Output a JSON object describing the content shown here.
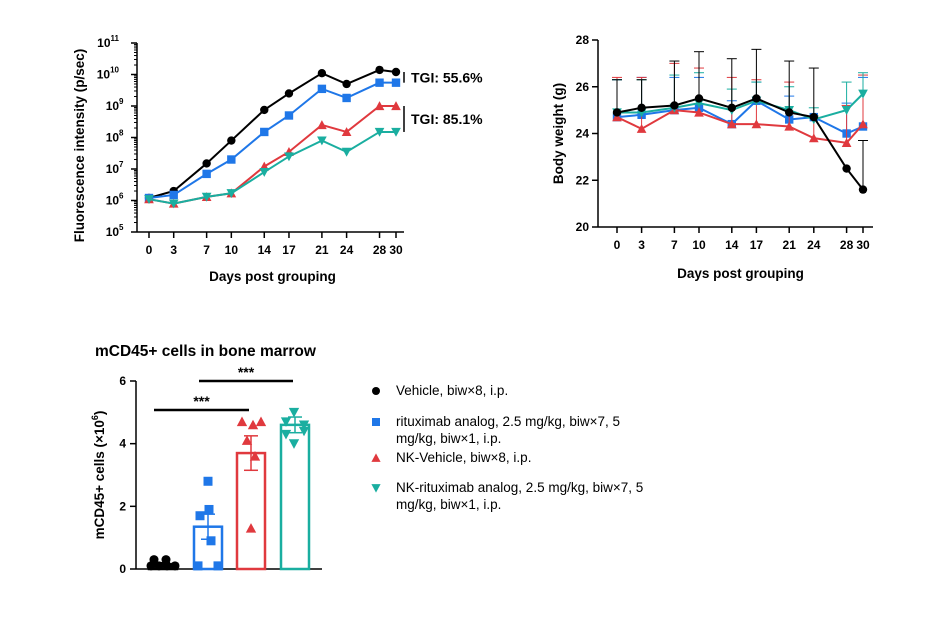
{
  "colors": {
    "vehicle": "#000000",
    "rituximab": "#1f77e8",
    "nk_vehicle": "#e0393e",
    "nk_rituximab": "#1aaea0"
  },
  "legend": [
    {
      "key": "vehicle",
      "marker": "circle",
      "lines": [
        "Vehicle, biw×8, i.p."
      ]
    },
    {
      "key": "rituximab",
      "marker": "square",
      "lines": [
        "rituximab analog, 2.5 mg/kg, biw×7, 5",
        "mg/kg, biw×1, i.p."
      ]
    },
    {
      "key": "nk_vehicle",
      "marker": "triangle-up",
      "lines": [
        "NK-Vehicle, biw×8, i.p."
      ]
    },
    {
      "key": "nk_rituximab",
      "marker": "triangle-down",
      "lines": [
        "NK-rituximab analog, 2.5 mg/kg, biw×7, 5",
        "mg/kg, biw×1, i.p."
      ]
    }
  ],
  "chart_data": [
    {
      "id": "fluorescence",
      "type": "line",
      "scale_y": "log",
      "xlabel": "Days post grouping",
      "ylabel": "Fluorescence intensity (p/sec)",
      "x": [
        0,
        3,
        7,
        10,
        14,
        17,
        21,
        24,
        28,
        30
      ],
      "x_tick_labels": [
        "0",
        "3",
        "7",
        "10",
        "14",
        "17",
        "21",
        "24",
        "28",
        "30"
      ],
      "ylim": [
        100000,
        100000000000
      ],
      "y_tick_labels": [
        {
          "value": 100000,
          "base": "10",
          "exp": "5"
        },
        {
          "value": 1000000,
          "base": "10",
          "exp": "6"
        },
        {
          "value": 10000000,
          "base": "10",
          "exp": "7"
        },
        {
          "value": 100000000,
          "base": "10",
          "exp": "8"
        },
        {
          "value": 1000000000,
          "base": "10",
          "exp": "9"
        },
        {
          "value": 10000000000,
          "base": "10",
          "exp": "10"
        },
        {
          "value": 100000000000,
          "base": "10",
          "exp": "11"
        }
      ],
      "series": [
        {
          "key": "vehicle",
          "marker": "circle",
          "values": [
            1200000,
            2000000,
            15000000,
            80000000,
            750000000,
            2500000000,
            11000000000,
            5000000000,
            14000000000,
            12000000000
          ]
        },
        {
          "key": "rituximab",
          "marker": "square",
          "values": [
            1200000,
            1500000,
            7000000,
            20000000,
            150000000,
            500000000,
            3500000000,
            1800000000,
            5500000000,
            5500000000
          ]
        },
        {
          "key": "nk_vehicle",
          "marker": "triangle-up",
          "values": [
            1100000,
            800000,
            1300000,
            1700000,
            12000000,
            35000000,
            250000000,
            150000000,
            1000000000,
            1000000000
          ]
        },
        {
          "key": "nk_rituximab",
          "marker": "triangle-down",
          "values": [
            1100000,
            800000,
            1300000,
            1700000,
            8000000,
            25000000,
            80000000,
            35000000,
            150000000,
            150000000
          ]
        }
      ],
      "annotations": [
        {
          "text": "TGI: 55.6%",
          "from": 12000000000,
          "to": 5500000000
        },
        {
          "text": "TGI: 85.1%",
          "from": 1000000000,
          "to": 150000000
        }
      ]
    },
    {
      "id": "body_weight",
      "type": "line",
      "xlabel": "Days post grouping",
      "ylabel": "Body weight (g)",
      "x": [
        0,
        3,
        7,
        10,
        14,
        17,
        21,
        24,
        28,
        30
      ],
      "x_tick_labels": [
        "0",
        "3",
        "7",
        "10",
        "14",
        "17",
        "21",
        "24",
        "28",
        "30"
      ],
      "ylim": [
        20,
        28
      ],
      "y_ticks": [
        20,
        22,
        24,
        26,
        28
      ],
      "y_tick_labels": [
        "20",
        "22",
        "24",
        "26",
        "28"
      ],
      "series": [
        {
          "key": "vehicle",
          "marker": "circle",
          "values": [
            24.9,
            25.1,
            25.2,
            25.5,
            25.1,
            25.5,
            24.9,
            24.7,
            22.5,
            21.6
          ],
          "error_plus": [
            1.4,
            1.2,
            1.9,
            2.0,
            2.1,
            2.1,
            2.2,
            2.1,
            0,
            2.1
          ]
        },
        {
          "key": "rituximab",
          "marker": "square",
          "values": [
            24.7,
            24.8,
            25.0,
            25.1,
            24.4,
            25.4,
            24.6,
            24.7,
            24.0,
            24.3
          ],
          "error_plus": [
            1.6,
            1.6,
            1.4,
            1.3,
            1.0,
            0.8,
            1.0,
            0.0,
            1.3,
            2.1
          ]
        },
        {
          "key": "nk_vehicle",
          "marker": "triangle-up",
          "values": [
            24.7,
            24.2,
            25.0,
            24.9,
            24.4,
            24.4,
            24.3,
            23.8,
            23.6,
            24.4
          ],
          "error_plus": [
            1.7,
            2.2,
            2.0,
            1.9,
            2.0,
            1.9,
            1.9,
            0.9,
            1.6,
            2.1
          ]
        },
        {
          "key": "nk_rituximab",
          "marker": "triangle-down",
          "values": [
            24.9,
            24.9,
            25.1,
            25.3,
            25.0,
            25.4,
            25.0,
            24.6,
            25.0,
            25.7
          ],
          "error_plus": [
            1.4,
            1.4,
            1.4,
            1.3,
            0.9,
            0.8,
            1.0,
            0.5,
            1.2,
            0.9
          ]
        }
      ]
    },
    {
      "id": "mcd45",
      "type": "bar",
      "title": "mCD45+ cells in bone marrow",
      "ylabel_prefix": "mCD45+ cells (×10",
      "ylabel_exp": "6",
      "ylabel_suffix": ")",
      "ylim": [
        0,
        6
      ],
      "y_ticks": [
        0,
        2,
        4,
        6
      ],
      "y_tick_labels": [
        "0",
        "2",
        "4",
        "6"
      ],
      "groups": [
        {
          "key": "vehicle",
          "marker": "circle",
          "mean": 0.15,
          "sem": 0.05,
          "points": [
            0.3,
            0.3,
            0.1,
            0.1,
            0.1,
            0.1
          ]
        },
        {
          "key": "rituximab",
          "marker": "square",
          "mean": 1.35,
          "sem": 0.4,
          "points": [
            2.8,
            1.9,
            1.7,
            0.9,
            0.1,
            0.1
          ]
        },
        {
          "key": "nk_vehicle",
          "marker": "triangle-up",
          "mean": 3.7,
          "sem": 0.55,
          "points": [
            4.7,
            4.6,
            4.7,
            4.1,
            3.6,
            1.3
          ]
        },
        {
          "key": "nk_rituximab",
          "marker": "triangle-down",
          "mean": 4.6,
          "sem": 0.25,
          "points": [
            5.0,
            4.7,
            4.6,
            4.4,
            4.3,
            4.0
          ]
        }
      ],
      "significance": [
        {
          "text": "***",
          "from": 0,
          "to": 2
        },
        {
          "text": "***",
          "from": 1,
          "to": 3
        }
      ]
    }
  ]
}
